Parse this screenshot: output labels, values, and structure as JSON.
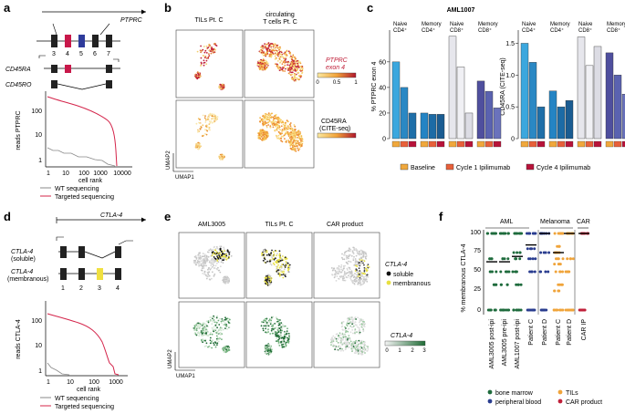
{
  "panels": {
    "a": {
      "label": "a",
      "gene": "PTPRC",
      "exons": [
        "3",
        "4",
        "5",
        "6",
        "7"
      ],
      "isoform1": "CD45RA",
      "isoform2": "CD45RO",
      "ylabel": "reads PTPRC",
      "xlabel": "cell rank",
      "yticks": [
        "100",
        "10",
        "1"
      ],
      "xticks": [
        "1",
        "10",
        "100",
        "1000",
        "10000"
      ],
      "legend": [
        "WT sequencing",
        "Targeted sequencing"
      ]
    },
    "b": {
      "label": "b",
      "col1": "TILs Pt. C",
      "col2a": "circulating",
      "col2b": "T cells Pt. C",
      "scale1_title": "PTPRC",
      "scale1_sub": "exon 4",
      "scale1_ticks": [
        "0",
        "0.5",
        "1"
      ],
      "scale2_title": "CD45RA",
      "scale2_sub": "(CITE-seq)",
      "umap1": "UMAP1",
      "umap2": "UMAP2"
    },
    "c": {
      "label": "c",
      "title": "AML1007",
      "groups": [
        [
          "Naive",
          "CD4⁺"
        ],
        [
          "Memory",
          "CD4⁺"
        ],
        [
          "Naive",
          "CD8⁺"
        ],
        [
          "Memory",
          "CD8⁺"
        ]
      ],
      "ylabel_left": "% PTPRC exon 4",
      "ylabel_right": "CD45RA (CITE-seq)",
      "yticks_left": [
        "0",
        "20",
        "40",
        "60"
      ],
      "yticks_right": [
        "0",
        "0.5",
        "1.0",
        "1.5"
      ],
      "legend": [
        "Baseline",
        "Cycle 1 Ipilimumab",
        "Cycle 4 Ipilimumab"
      ],
      "colors": {
        "baseline": "#f0a83c",
        "cycle1": "#e8603a",
        "cycle4": "#b8133a"
      }
    },
    "d": {
      "label": "d",
      "gene": "CTLA-4",
      "iso1": "CTLA-4",
      "iso1_sub": "(soluble)",
      "iso2": "CTLA-4",
      "iso2_sub": "(membranous)",
      "exons": [
        "1",
        "2",
        "3",
        "4"
      ],
      "ylabel": "reads CTLA-4",
      "xlabel": "cell rank",
      "yticks": [
        "100",
        "10",
        "1"
      ],
      "xticks": [
        "1",
        "10",
        "100",
        "1000"
      ],
      "legend": [
        "WT sequencing",
        "Targeted sequencing"
      ]
    },
    "e": {
      "label": "e",
      "col1": "AML3005",
      "col2": "TILs Pt. C",
      "col3": "CAR product",
      "legend_title": "CTLA-4",
      "legend_items": [
        "soluble",
        "membranous"
      ],
      "scale_title": "CTLA-4",
      "scale_ticks": [
        "0",
        "1",
        "2",
        "3"
      ],
      "umap1": "UMAP1",
      "umap2": "UMAP2"
    },
    "f": {
      "label": "f",
      "ylabel": "% membranous CTLA-4",
      "yticks": [
        "0",
        "25",
        "50",
        "75",
        "100"
      ],
      "group_labels": [
        "AML",
        "Melanoma",
        "CAR"
      ],
      "samples": [
        "AML3005 post-ipi",
        "AML3005 pre-ipi",
        "AML1007 post-ipi",
        "Patient C",
        "Patient D",
        "Patient C",
        "Patient D",
        "CAR IP"
      ],
      "legend": [
        "bone marrow",
        "peripheral blood",
        "TILs",
        "CAR product"
      ],
      "colors": {
        "bm": "#1e6b3c",
        "pb": "#2a3d8f",
        "til": "#f0a43a",
        "car": "#c0203a"
      }
    }
  },
  "chart_data": [
    {
      "type": "bar",
      "title": "AML1007",
      "ylabel": "% PTPRC exon 4",
      "categories": [
        "Naive CD4⁺",
        "Memory CD4⁺",
        "Naive CD8⁺",
        "Memory CD8⁺"
      ],
      "series": [
        {
          "name": "Baseline",
          "values": [
            60,
            20,
            80,
            45
          ]
        },
        {
          "name": "Cycle 1 Ipilimumab",
          "values": [
            40,
            19,
            56,
            37
          ]
        },
        {
          "name": "Cycle 4 Ipilimumab",
          "values": [
            20,
            19,
            20,
            24
          ]
        }
      ],
      "ylim": [
        0,
        82
      ]
    },
    {
      "type": "bar",
      "title": "AML1007",
      "ylabel": "CD45RA (CITE-seq)",
      "categories": [
        "Naive CD4⁺",
        "Memory CD4⁺",
        "Naive CD8⁺",
        "Memory CD8⁺"
      ],
      "series": [
        {
          "name": "Baseline",
          "values": [
            1.5,
            0.75,
            1.6,
            1.35
          ]
        },
        {
          "name": "Cycle 1 Ipilimumab",
          "values": [
            1.2,
            0.5,
            1.15,
            1.0
          ]
        },
        {
          "name": "Cycle 4 Ipilimumab",
          "values": [
            0.5,
            0.6,
            1.45,
            0.7
          ]
        }
      ],
      "ylim": [
        0,
        1.65
      ]
    },
    {
      "type": "line",
      "ylabel": "reads PTPRC",
      "xlabel": "cell rank",
      "series": [
        {
          "name": "Targeted sequencing",
          "x": [
            1,
            3,
            10,
            30,
            100,
            300,
            1000,
            2000,
            3000,
            5000
          ],
          "y": [
            150,
            120,
            90,
            70,
            50,
            35,
            15,
            8,
            3,
            1
          ]
        },
        {
          "name": "WT sequencing",
          "x": [
            1,
            5,
            10,
            20,
            50,
            100,
            200,
            400
          ],
          "y": [
            5,
            4,
            3,
            2.5,
            2,
            1.5,
            1.2,
            1
          ]
        }
      ]
    },
    {
      "type": "line",
      "ylabel": "reads CTLA-4",
      "xlabel": "cell rank",
      "series": [
        {
          "name": "Targeted sequencing",
          "x": [
            1,
            3,
            10,
            30,
            100,
            200,
            300,
            500,
            800,
            1000
          ],
          "y": [
            300,
            200,
            120,
            90,
            50,
            20,
            8,
            3,
            1.5,
            1
          ]
        },
        {
          "name": "WT sequencing",
          "x": [
            1,
            3,
            10,
            20
          ],
          "y": [
            3,
            2,
            1.5,
            1
          ]
        }
      ]
    },
    {
      "type": "scatter",
      "ylabel": "% membranous CTLA-4",
      "categories": [
        "AML3005 post-ipi",
        "AML3005 pre-ipi",
        "AML1007 post-ipi",
        "Patient C",
        "Patient D",
        "Patient C",
        "Patient D",
        "CAR IP"
      ],
      "medians": [
        63,
        63,
        70,
        85,
        100,
        75,
        100,
        100
      ],
      "ylim": [
        0,
        100
      ]
    }
  ]
}
